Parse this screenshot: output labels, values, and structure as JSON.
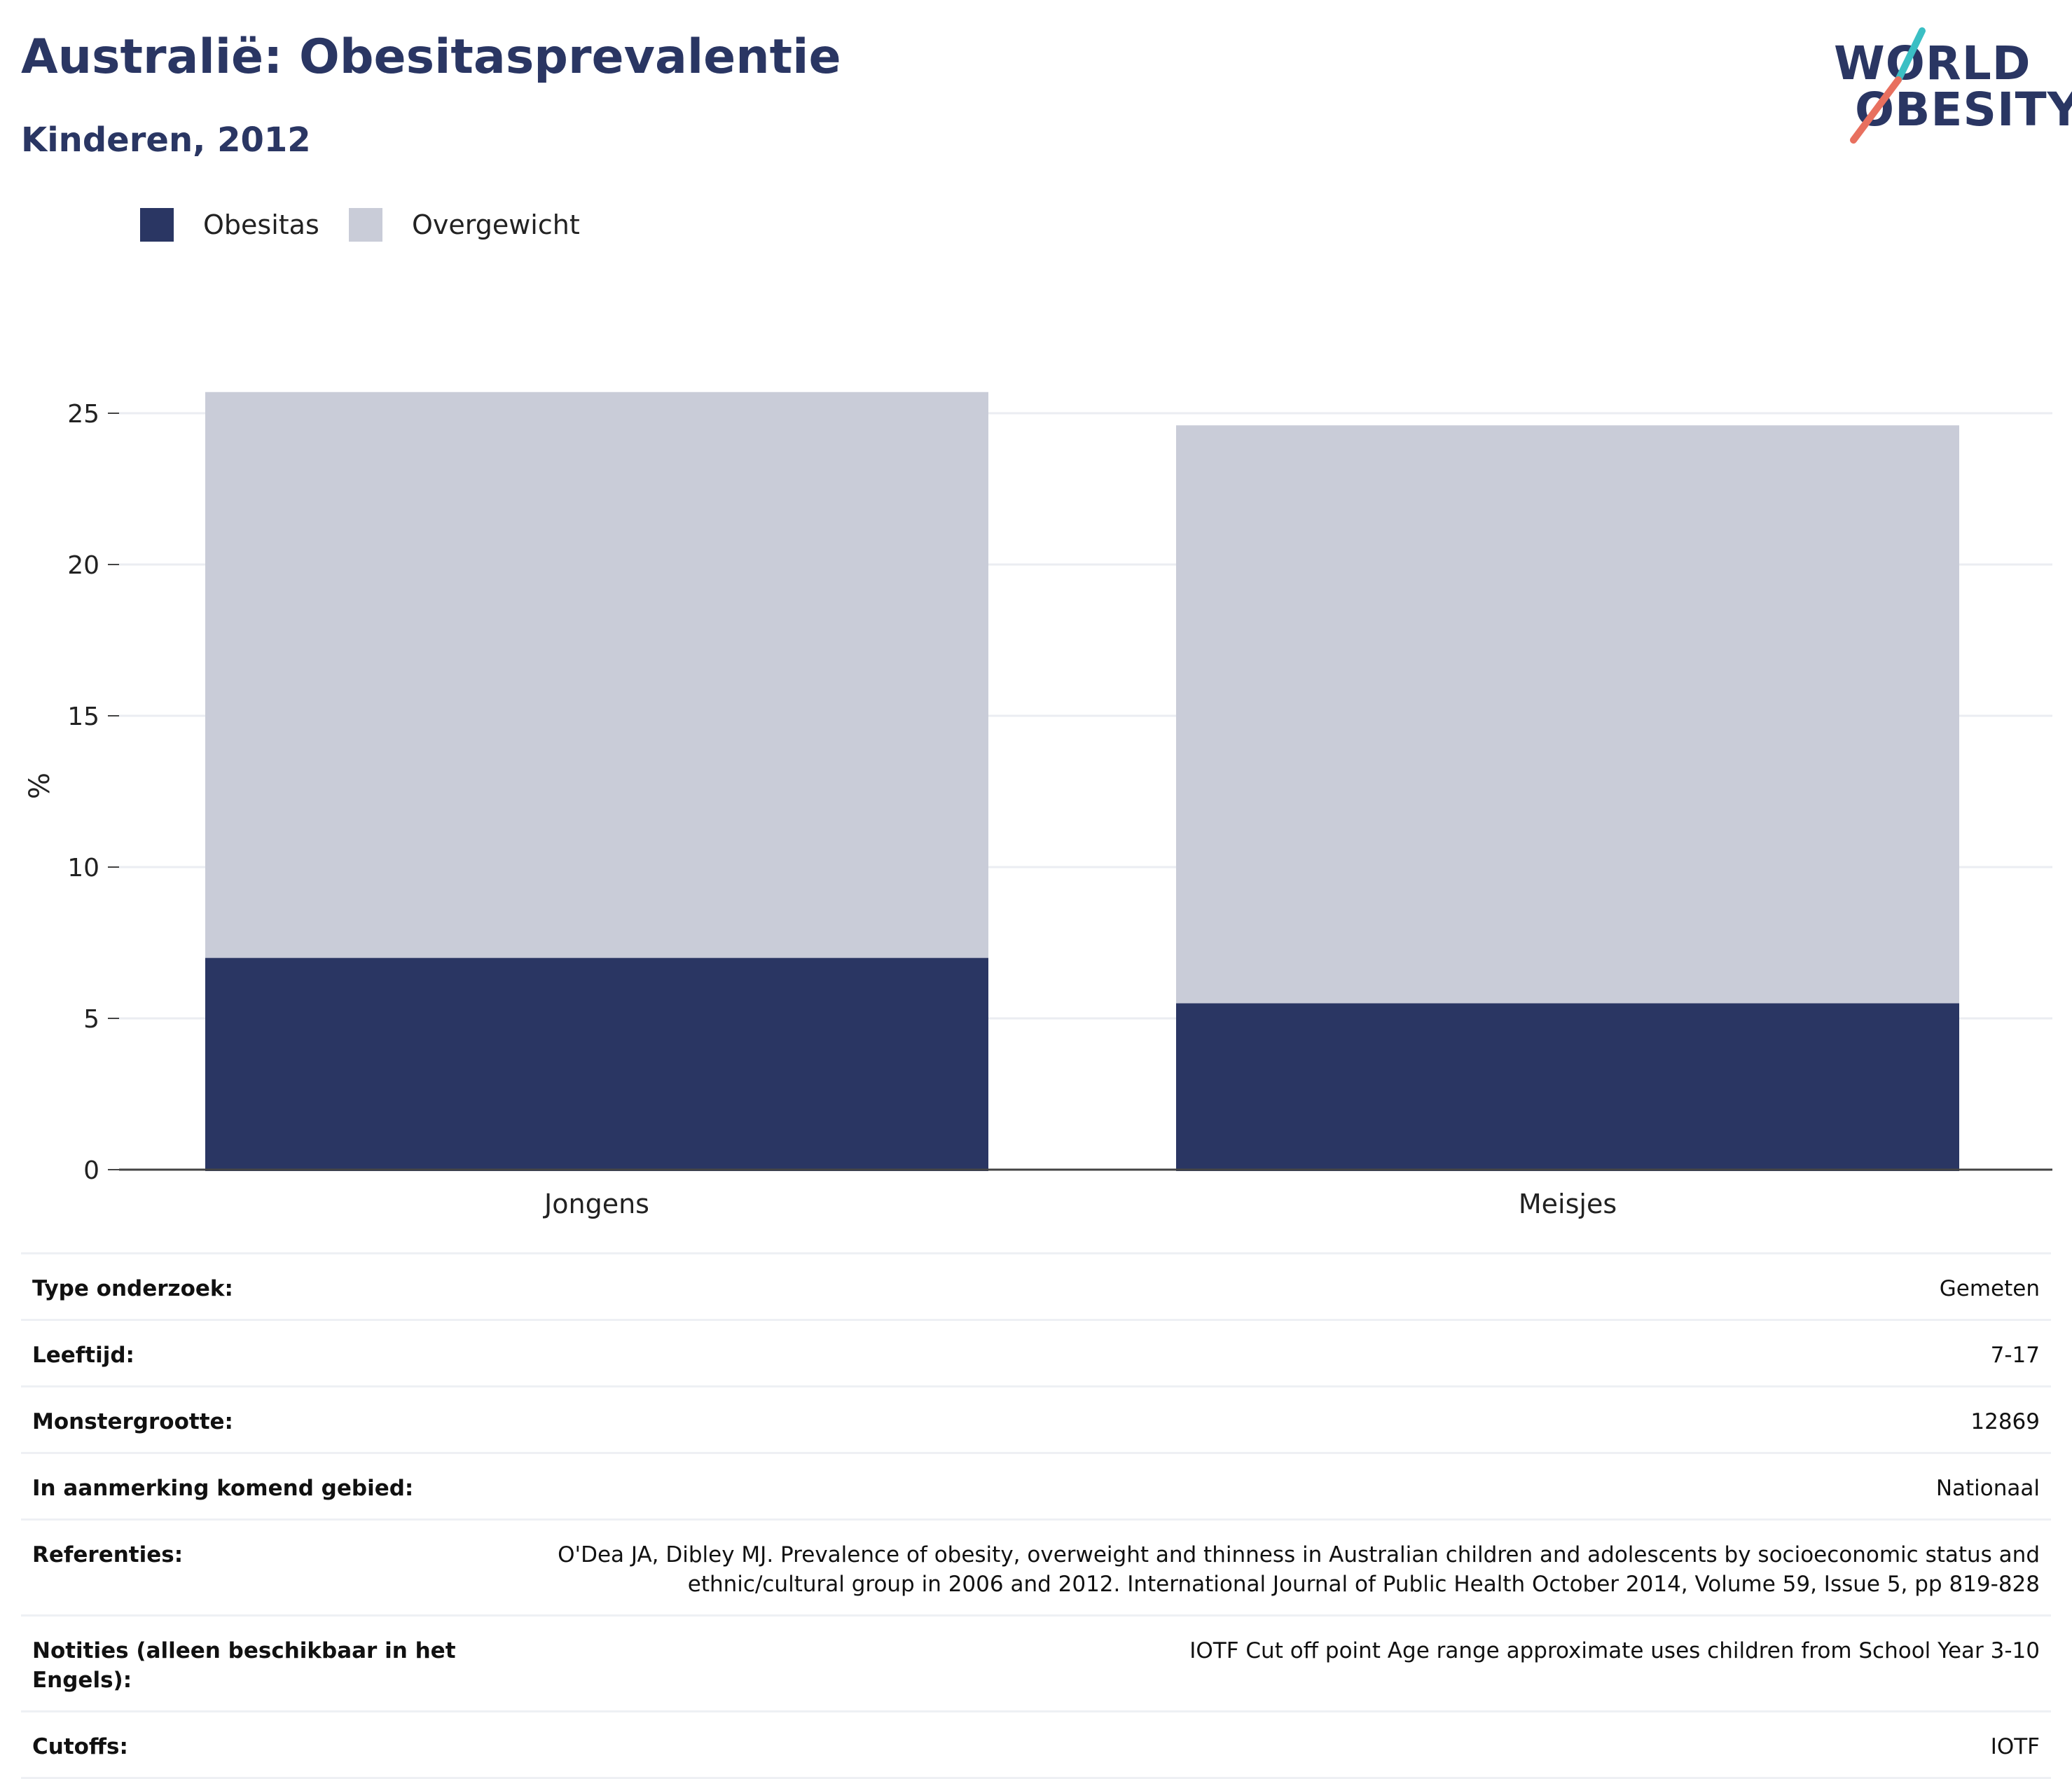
{
  "title": "Australië: Obesitasprevalentie",
  "subtitle": "Kinderen, 2012",
  "logo": {
    "line1": "WORLD",
    "line2": "OBESITY",
    "accent_colors": [
      "#3bbfc4",
      "#e8705f"
    ]
  },
  "legend": [
    {
      "label": "Obesitas",
      "color": "#2a3663"
    },
    {
      "label": "Overgewicht",
      "color": "#c9ccd8"
    }
  ],
  "chart_data": {
    "type": "bar",
    "stacked": true,
    "categories": [
      "Jongens",
      "Meisjes"
    ],
    "series": [
      {
        "name": "Obesitas",
        "values": [
          7.0,
          5.5
        ],
        "color": "#2a3663"
      },
      {
        "name": "Overgewicht",
        "values": [
          18.7,
          19.1
        ],
        "color": "#c9ccd8"
      }
    ],
    "xlabel": "",
    "ylabel": "%",
    "ylim": [
      0,
      27.5
    ],
    "yticks": [
      0,
      5,
      10,
      15,
      20,
      25
    ],
    "grid": true,
    "legend_position": "top-left"
  },
  "details": [
    {
      "key": "Type onderzoek:",
      "value": "Gemeten"
    },
    {
      "key": "Leeftijd:",
      "value": "7-17"
    },
    {
      "key": "Monstergrootte:",
      "value": "12869"
    },
    {
      "key": "In aanmerking komend gebied:",
      "value": "Nationaal"
    },
    {
      "key": "Referenties:",
      "value": "O'Dea JA, Dibley MJ. Prevalence of obesity, overweight and thinness in Australian children and adolescents by socioeconomic status and ethnic/cultural group in 2006 and 2012. International Journal of Public Health October 2014, Volume 59, Issue 5, pp 819-828"
    },
    {
      "key": "Notities (alleen beschikbaar in het Engels):",
      "value": "IOTF Cut off point Age range approximate uses children from School Year 3-10"
    },
    {
      "key": "Cutoffs:",
      "value": "IOTF"
    }
  ]
}
